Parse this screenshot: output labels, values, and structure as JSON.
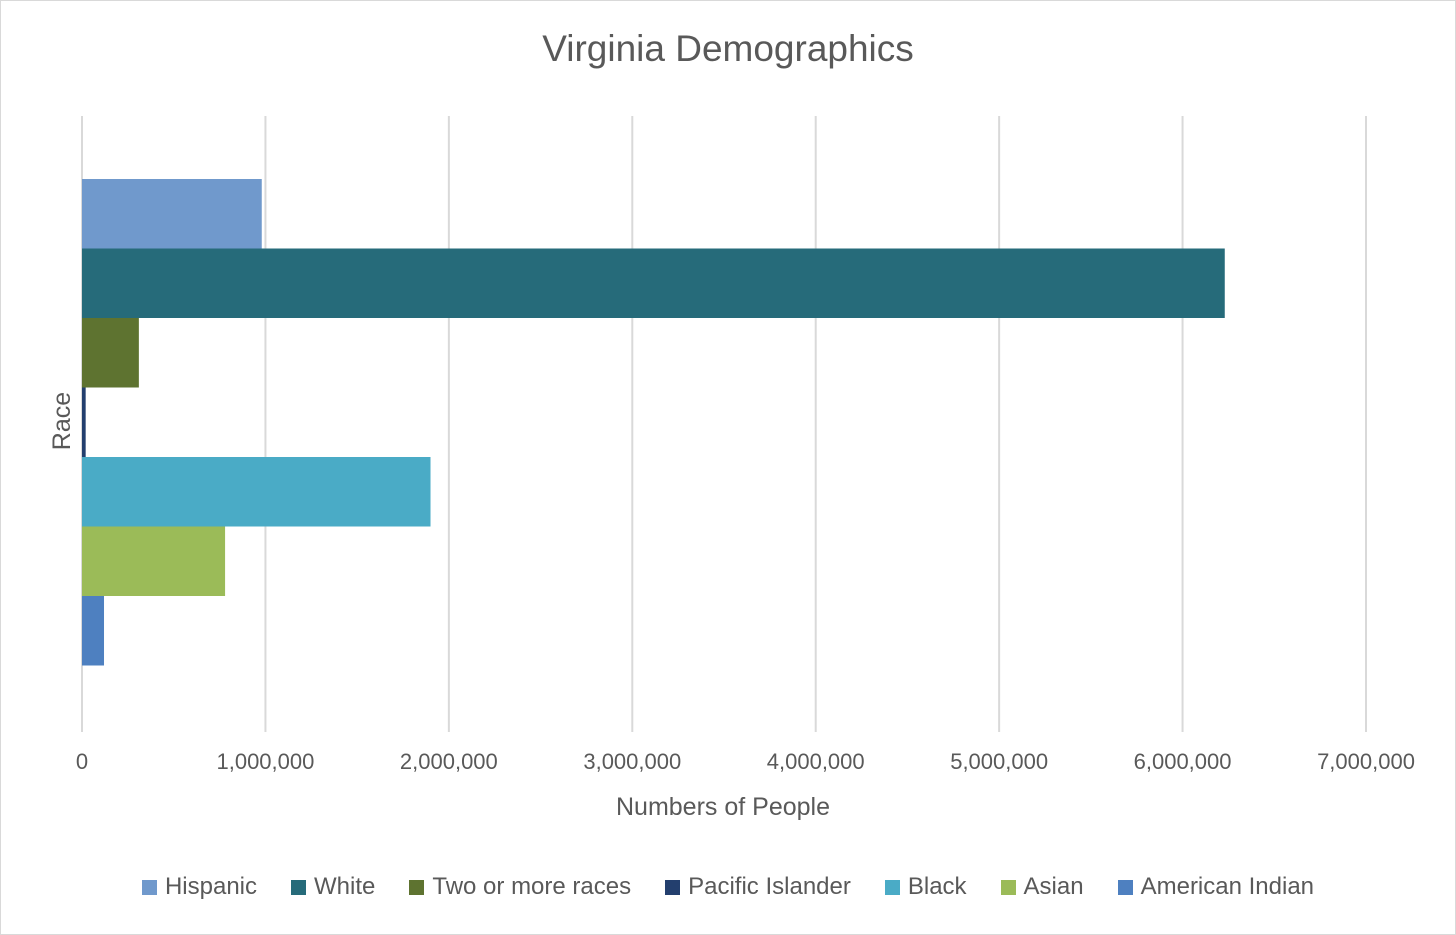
{
  "chart_data": {
    "type": "bar",
    "orientation": "horizontal",
    "title": "Virginia Demographics",
    "xlabel": "Numbers of People",
    "ylabel": "Race",
    "xlim": [
      0,
      7000000
    ],
    "x_ticks": [
      0,
      1000000,
      2000000,
      3000000,
      4000000,
      5000000,
      6000000,
      7000000
    ],
    "x_tick_labels": [
      "0",
      "1,000,000",
      "2,000,000",
      "3,000,000",
      "4,000,000",
      "5,000,000",
      "6,000,000",
      "7,000,000"
    ],
    "grid": "vertical major gridlines",
    "legend_position": "bottom",
    "series": [
      {
        "name": "Hispanic",
        "values": [
          980000
        ],
        "color": "#7099cc"
      },
      {
        "name": "White",
        "values": [
          6230000
        ],
        "color": "#266b7a"
      },
      {
        "name": "Two or more races",
        "values": [
          310000
        ],
        "color": "#5e7330"
      },
      {
        "name": "Pacific Islander",
        "values": [
          20000
        ],
        "color": "#233f6e"
      },
      {
        "name": "Black",
        "values": [
          1900000
        ],
        "color": "#4aabc6"
      },
      {
        "name": "Asian",
        "values": [
          780000
        ],
        "color": "#9bbb58"
      },
      {
        "name": "American Indian",
        "values": [
          120000
        ],
        "color": "#4e80c0"
      }
    ]
  }
}
